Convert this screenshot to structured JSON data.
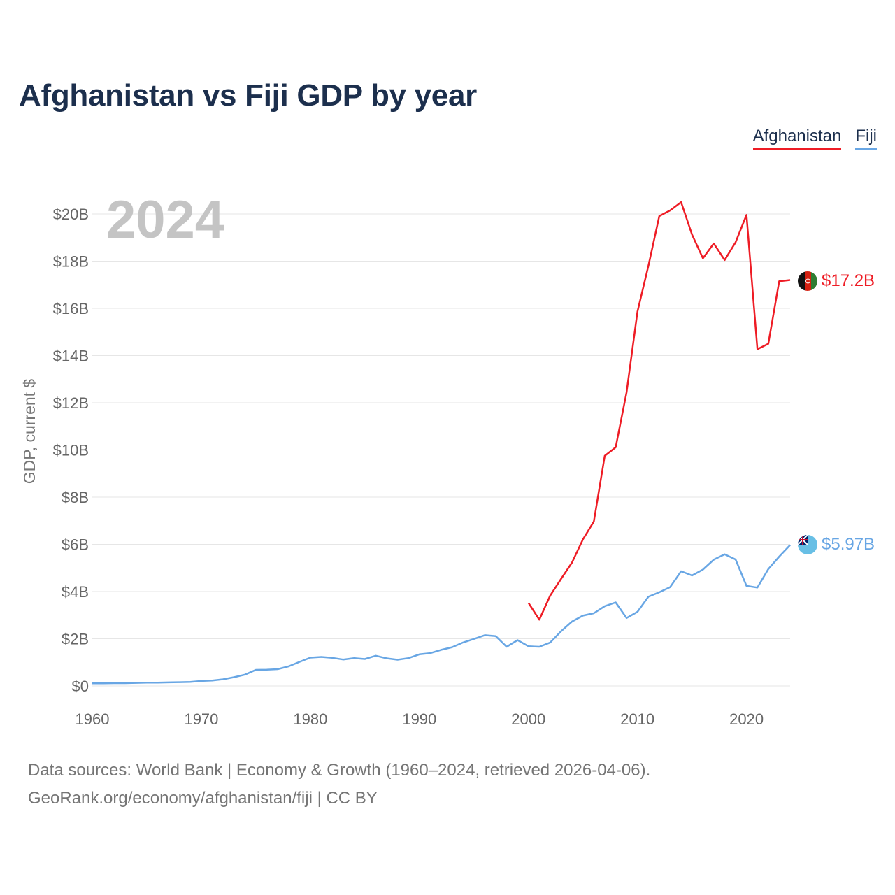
{
  "title": "Afghanistan vs Fiji GDP by year",
  "legend": [
    "Afghanistan",
    "Fiji"
  ],
  "year_watermark": "2024",
  "end_labels": {
    "afghanistan": "$17.2B",
    "fiji": "$5.97B"
  },
  "footer": {
    "line1": "Data sources: World Bank | Economy & Growth (1960–2024, retrieved 2026-04-06).",
    "line2": "GeoRank.org/economy/afghanistan/fiji | CC BY"
  },
  "colors": {
    "afghanistan": "#ee1c25",
    "fiji": "#68a6e4",
    "title": "#1c2f4d",
    "grid": "#e6e6e6"
  },
  "chart_data": {
    "type": "line",
    "title": "Afghanistan vs Fiji GDP by year",
    "xlabel": "",
    "ylabel": "GDP, current $",
    "xlim": [
      1960,
      2024
    ],
    "ylim": [
      0,
      20
    ],
    "y_unit": "billions USD",
    "x_ticks": [
      1960,
      1970,
      1980,
      1990,
      2000,
      2010,
      2020
    ],
    "x_tick_labels": [
      "1960",
      "1970",
      "1980",
      "1990",
      "2000",
      "2010",
      "2020"
    ],
    "y_ticks": [
      0,
      2,
      4,
      6,
      8,
      10,
      12,
      14,
      16,
      18,
      20
    ],
    "y_tick_labels": [
      "$0",
      "$2B",
      "$4B",
      "$6B",
      "$8B",
      "$10B",
      "$12B",
      "$14B",
      "$16B",
      "$18B",
      "$20B"
    ],
    "legend_position": "top-right",
    "series": [
      {
        "name": "Afghanistan",
        "color": "#ee1c25",
        "x": [
          2000,
          2001,
          2002,
          2003,
          2004,
          2005,
          2006,
          2007,
          2008,
          2009,
          2010,
          2011,
          2012,
          2013,
          2014,
          2015,
          2016,
          2017,
          2018,
          2019,
          2020,
          2021,
          2022,
          2023,
          2024
        ],
        "values": [
          3.52,
          2.81,
          3.83,
          4.54,
          5.23,
          6.21,
          6.97,
          9.75,
          10.11,
          12.44,
          15.86,
          17.8,
          19.91,
          20.15,
          20.5,
          19.13,
          18.12,
          18.75,
          18.05,
          18.8,
          19.96,
          14.27,
          14.5,
          17.15,
          17.2
        ]
      },
      {
        "name": "Fiji",
        "color": "#68a6e4",
        "x": [
          1960,
          1961,
          1962,
          1963,
          1964,
          1965,
          1966,
          1967,
          1968,
          1969,
          1970,
          1971,
          1972,
          1973,
          1974,
          1975,
          1976,
          1977,
          1978,
          1979,
          1980,
          1981,
          1982,
          1983,
          1984,
          1985,
          1986,
          1987,
          1988,
          1989,
          1990,
          1991,
          1992,
          1993,
          1994,
          1995,
          1996,
          1997,
          1998,
          1999,
          2000,
          2001,
          2002,
          2003,
          2004,
          2005,
          2006,
          2007,
          2008,
          2009,
          2010,
          2011,
          2012,
          2013,
          2014,
          2015,
          2016,
          2017,
          2018,
          2019,
          2020,
          2021,
          2022,
          2023,
          2024
        ],
        "values": [
          0.11,
          0.11,
          0.12,
          0.12,
          0.13,
          0.14,
          0.14,
          0.15,
          0.16,
          0.17,
          0.21,
          0.23,
          0.28,
          0.37,
          0.48,
          0.68,
          0.69,
          0.71,
          0.83,
          1.02,
          1.2,
          1.23,
          1.19,
          1.12,
          1.18,
          1.14,
          1.28,
          1.17,
          1.11,
          1.18,
          1.34,
          1.39,
          1.53,
          1.64,
          1.84,
          1.99,
          2.15,
          2.11,
          1.66,
          1.94,
          1.68,
          1.66,
          1.84,
          2.32,
          2.73,
          2.98,
          3.08,
          3.38,
          3.54,
          2.88,
          3.14,
          3.78,
          3.97,
          4.19,
          4.86,
          4.68,
          4.93,
          5.35,
          5.58,
          5.36,
          4.24,
          4.17,
          4.95,
          5.48,
          5.97
        ]
      }
    ]
  }
}
